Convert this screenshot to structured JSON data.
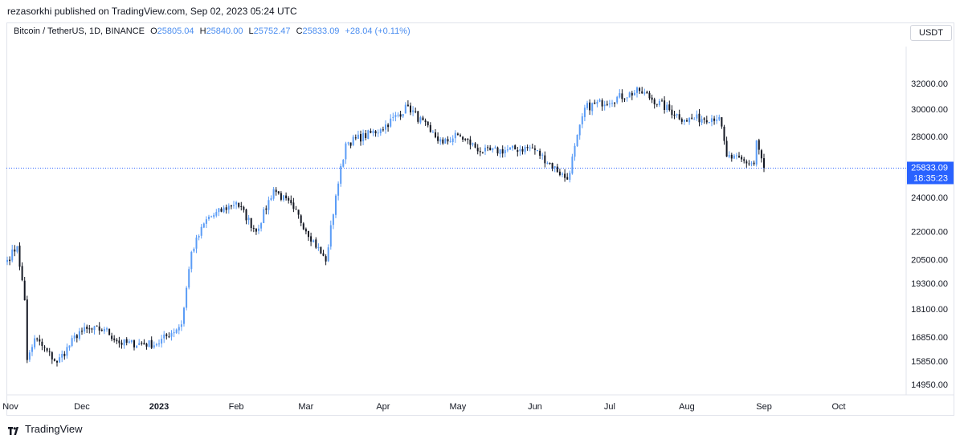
{
  "publisher_line": "rezasorkhi published on TradingView.com, Sep 02, 2023 05:24 UTC",
  "legend": {
    "symbol": "Bitcoin / TetherUS, 1D, BINANCE",
    "o_label": "O",
    "o_value": "25805.04",
    "h_label": "H",
    "h_value": "25840.00",
    "l_label": "L",
    "l_value": "25752.47",
    "c_label": "C",
    "c_value": "25833.09",
    "change": "+28.04 (+0.11%)"
  },
  "currency_button": "USDT",
  "price_label": {
    "price": "25833.09",
    "countdown": "18:35:23"
  },
  "footer_logo": "TradingView",
  "colors": {
    "up": "#5b9cf6",
    "down": "#131722",
    "last_price_line": "#2962ff",
    "price_badge": "#2962ff"
  },
  "chart_data": {
    "type": "candlestick",
    "y_axis_ticks": [
      "32000.00",
      "30000.00",
      "28000.00",
      "24000.00",
      "22000.00",
      "20500.00",
      "19300.00",
      "18100.00",
      "16850.00",
      "15850.00",
      "14950.00"
    ],
    "x_axis_ticks": [
      "Nov",
      "Dec",
      "2023",
      "Feb",
      "Mar",
      "Apr",
      "May",
      "Jun",
      "Jul",
      "Aug",
      "Sep",
      "Oct"
    ],
    "y_scale": "log",
    "last_close": 25833.09,
    "series_close": [
      {
        "date": "2022-11-01",
        "close": 20480
      },
      {
        "date": "2022-11-05",
        "close": 21200
      },
      {
        "date": "2022-11-08",
        "close": 18500
      },
      {
        "date": "2022-11-09",
        "close": 15900
      },
      {
        "date": "2022-11-12",
        "close": 16800
      },
      {
        "date": "2022-11-21",
        "close": 15800
      },
      {
        "date": "2022-11-30",
        "close": 17100
      },
      {
        "date": "2022-12-10",
        "close": 17200
      },
      {
        "date": "2022-12-16",
        "close": 16600
      },
      {
        "date": "2022-12-31",
        "close": 16550
      },
      {
        "date": "2023-01-10",
        "close": 17400
      },
      {
        "date": "2023-01-14",
        "close": 20900
      },
      {
        "date": "2023-01-20",
        "close": 22700
      },
      {
        "date": "2023-02-01",
        "close": 23700
      },
      {
        "date": "2023-02-09",
        "close": 22000
      },
      {
        "date": "2023-02-16",
        "close": 24500
      },
      {
        "date": "2023-02-24",
        "close": 23300
      },
      {
        "date": "2023-03-09",
        "close": 20400
      },
      {
        "date": "2023-03-13",
        "close": 24100
      },
      {
        "date": "2023-03-17",
        "close": 27500
      },
      {
        "date": "2023-03-31",
        "close": 28500
      },
      {
        "date": "2023-04-11",
        "close": 30200
      },
      {
        "date": "2023-04-20",
        "close": 28300
      },
      {
        "date": "2023-04-25",
        "close": 27500
      },
      {
        "date": "2023-05-01",
        "close": 28100
      },
      {
        "date": "2023-05-11",
        "close": 26900
      },
      {
        "date": "2023-05-31",
        "close": 27200
      },
      {
        "date": "2023-06-14",
        "close": 25100
      },
      {
        "date": "2023-06-21",
        "close": 30100
      },
      {
        "date": "2023-07-13",
        "close": 31400
      },
      {
        "date": "2023-07-31",
        "close": 29200
      },
      {
        "date": "2023-08-14",
        "close": 29400
      },
      {
        "date": "2023-08-17",
        "close": 26600
      },
      {
        "date": "2023-08-28",
        "close": 26100
      },
      {
        "date": "2023-08-29",
        "close": 27700
      },
      {
        "date": "2023-09-01",
        "close": 25833.09
      }
    ]
  }
}
